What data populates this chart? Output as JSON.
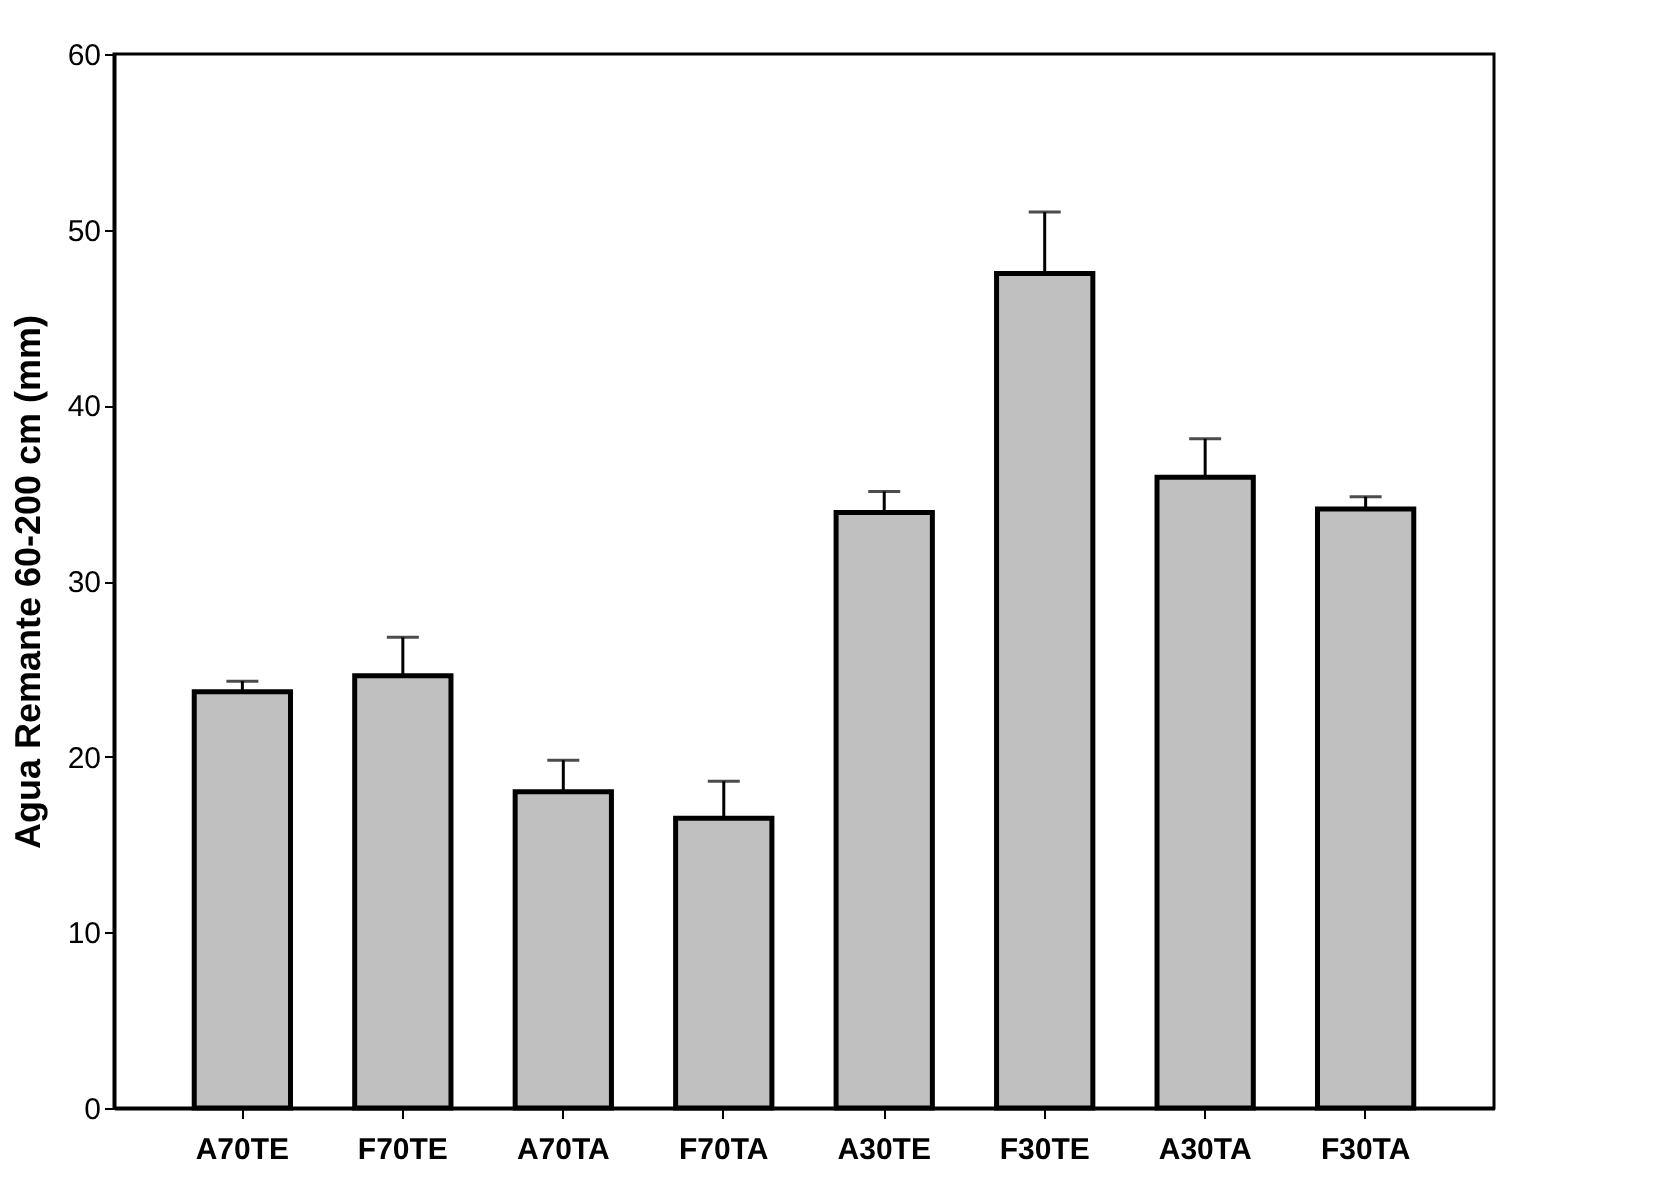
{
  "chart_data": {
    "type": "bar",
    "ylabel": "Agua Remante 60-200 cm (mm)",
    "categories": [
      "A70TE",
      "F70TE",
      "A70TA",
      "F70TA",
      "A30TE",
      "F30TE",
      "A30TA",
      "F30TA"
    ],
    "values": [
      23.7,
      24.6,
      18.0,
      16.5,
      33.9,
      47.5,
      35.9,
      34.1
    ],
    "errors": [
      [
        23.7,
        24.3
      ],
      [
        24.6,
        26.8
      ],
      [
        18.0,
        19.8
      ],
      [
        16.5,
        18.6
      ],
      [
        33.9,
        35.1
      ],
      [
        47.5,
        51.0
      ],
      [
        35.9,
        38.1
      ],
      [
        34.1,
        34.8
      ]
    ],
    "color": "#c0c0c0",
    "ylim": [
      0,
      60
    ],
    "yticks": [
      0,
      10,
      20,
      30,
      40,
      50,
      60
    ],
    "grid": false
  }
}
